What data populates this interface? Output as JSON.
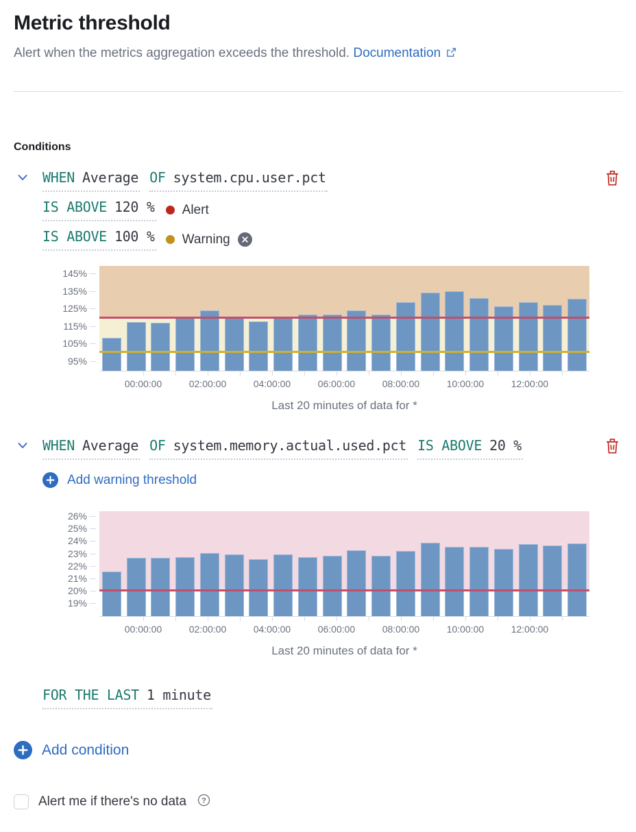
{
  "header": {
    "title": "Metric threshold",
    "subtitle": "Alert when the metrics aggregation exceeds the threshold.",
    "doc_link_label": "Documentation"
  },
  "conditions_label": "Conditions",
  "conditions": [
    {
      "aggregation": {
        "keyword": "WHEN",
        "value": "Average"
      },
      "metric": {
        "keyword": "OF",
        "value": "system.cpu.user.pct"
      },
      "thresholds": [
        {
          "keyword": "IS ABOVE",
          "value": "120 %",
          "severity": "Alert",
          "dot_style": "background:#BD271E",
          "removable": false
        },
        {
          "keyword": "IS ABOVE",
          "value": "100 %",
          "severity": "Warning",
          "dot_style": "background:#C1911C",
          "removable": true
        }
      ]
    },
    {
      "aggregation": {
        "keyword": "WHEN",
        "value": "Average"
      },
      "metric": {
        "keyword": "OF",
        "value": "system.memory.actual.used.pct"
      },
      "inline_threshold": {
        "keyword": "IS ABOVE",
        "value": "20 %"
      },
      "add_warning_label": "Add warning threshold"
    }
  ],
  "for_the_last": {
    "keyword": "FOR THE LAST",
    "value": "1 minute"
  },
  "add_condition_label": "Add condition",
  "no_data_label": "Alert me if there's no data",
  "colors": {
    "link_blue": "#2E6CC0",
    "keyword_teal": "#1B7A6E",
    "danger_red": "#BD271E",
    "warning_gold": "#C1911C",
    "text": "#343741",
    "subdued_text": "#69707D",
    "divider": "#D3DAE6"
  },
  "chart_data": [
    {
      "type": "bar",
      "caption": "Last 20 minutes of data for *",
      "x_labels": [
        "00:00:00",
        "02:00:00",
        "04:00:00",
        "06:00:00",
        "08:00:00",
        "10:00:00",
        "12:00:00"
      ],
      "values": [
        108,
        117,
        116.5,
        120,
        124,
        120,
        117.5,
        119.5,
        121.5,
        121.5,
        124,
        121.5,
        128.5,
        134,
        135,
        131,
        126,
        128.5,
        127,
        130.5
      ],
      "ylim": [
        89,
        149.5
      ],
      "y_ticks": [
        {
          "v": 95,
          "label": "95%"
        },
        {
          "v": 105,
          "label": "105%"
        },
        {
          "v": 115,
          "label": "115%"
        },
        {
          "v": 125,
          "label": "125%"
        },
        {
          "v": 135,
          "label": "135%"
        },
        {
          "v": 145,
          "label": "145%"
        }
      ],
      "thresholds": [
        {
          "value": 120,
          "severity": "alert",
          "line_color": "#C34E6B",
          "band_color": "#E9CDAF"
        },
        {
          "value": 100,
          "severity": "warning",
          "line_color": "#D1B12F",
          "band_color": "#F5F0D4"
        }
      ],
      "bar_color": "#6D96C3",
      "bar_border_color": "#9DB9D8",
      "grid": false,
      "legend": false,
      "x_tick_first_pct": 8.95,
      "x_tick_step_pct": 6.573,
      "x_tick_count": 14
    },
    {
      "type": "bar",
      "caption": "Last 20 minutes of data for *",
      "x_labels": [
        "00:00:00",
        "02:00:00",
        "04:00:00",
        "06:00:00",
        "08:00:00",
        "10:00:00",
        "12:00:00"
      ],
      "values": [
        21.5,
        22.6,
        22.6,
        22.7,
        23.0,
        22.9,
        22.5,
        22.9,
        22.7,
        22.8,
        23.25,
        22.8,
        23.2,
        23.85,
        23.5,
        23.5,
        23.35,
        23.75,
        23.65,
        23.8
      ],
      "ylim": [
        17.9,
        26.4
      ],
      "y_ticks": [
        {
          "v": 19,
          "label": "19%"
        },
        {
          "v": 20,
          "label": "20%"
        },
        {
          "v": 21,
          "label": "21%"
        },
        {
          "v": 22,
          "label": "22%"
        },
        {
          "v": 23,
          "label": "23%"
        },
        {
          "v": 24,
          "label": "24%"
        },
        {
          "v": 25,
          "label": "25%"
        },
        {
          "v": 26,
          "label": "26%"
        }
      ],
      "thresholds": [
        {
          "value": 20,
          "severity": "alert",
          "line_color": "#C34E6B",
          "band_color": "#F2D9E2"
        }
      ],
      "bar_color": "#6D96C3",
      "bar_border_color": "#9DB9D8",
      "grid": false,
      "legend": false,
      "x_tick_first_pct": 8.95,
      "x_tick_step_pct": 6.573,
      "x_tick_count": 14
    }
  ]
}
